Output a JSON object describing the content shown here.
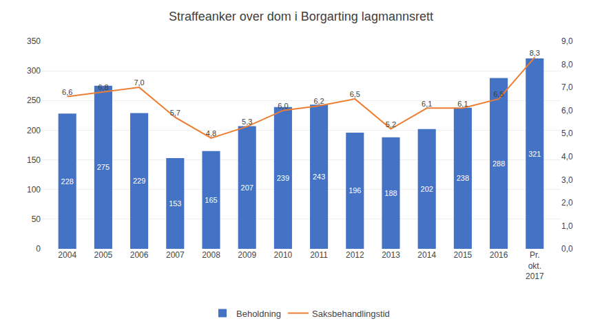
{
  "chart_data": {
    "type": "bar",
    "title": "Straffeanker over dom i Borgarting lagmannsrett",
    "categories": [
      "2004",
      "2005",
      "2006",
      "2007",
      "2008",
      "2009",
      "2010",
      "2011",
      "2012",
      "2013",
      "2014",
      "2015",
      "2016",
      "Pr.\nokt.\n2017"
    ],
    "series": [
      {
        "name": "Beholdning",
        "type": "bar",
        "color": "#4472C4",
        "values": [
          228,
          275,
          229,
          153,
          165,
          207,
          239,
          243,
          196,
          188,
          202,
          238,
          288,
          321
        ]
      },
      {
        "name": "Saksbehandlingstid",
        "type": "line",
        "axis": "y2",
        "color": "#ED7D31",
        "values": [
          6.6,
          6.8,
          7.0,
          5.7,
          4.8,
          5.3,
          6.0,
          6.2,
          6.5,
          5.2,
          6.1,
          6.1,
          6.5,
          8.3
        ],
        "value_labels": [
          "6,6",
          "6,8",
          "7,0",
          "5,7",
          "4,8",
          "5,3",
          "6,0",
          "6,2",
          "6,5",
          "5,2",
          "6,1",
          "6,1",
          "6,5",
          "8,3"
        ]
      }
    ],
    "ylim": [
      0,
      350
    ],
    "yticks": [
      0,
      50,
      100,
      150,
      200,
      250,
      300,
      350
    ],
    "y2lim": [
      0.0,
      9.0
    ],
    "y2ticks": [
      {
        "value": 0.0,
        "label": "0,0"
      },
      {
        "value": 1.0,
        "label": "1,0"
      },
      {
        "value": 2.0,
        "label": "2,0"
      },
      {
        "value": 3.0,
        "label": "3,0"
      },
      {
        "value": 4.0,
        "label": "4,0"
      },
      {
        "value": 5.0,
        "label": "5,0"
      },
      {
        "value": 6.0,
        "label": "6,0"
      },
      {
        "value": 7.0,
        "label": "7,0"
      },
      {
        "value": 8.0,
        "label": "8,0"
      },
      {
        "value": 9.0,
        "label": "9,0"
      }
    ],
    "grid": true,
    "data_labels": true,
    "legend": "bottom"
  }
}
